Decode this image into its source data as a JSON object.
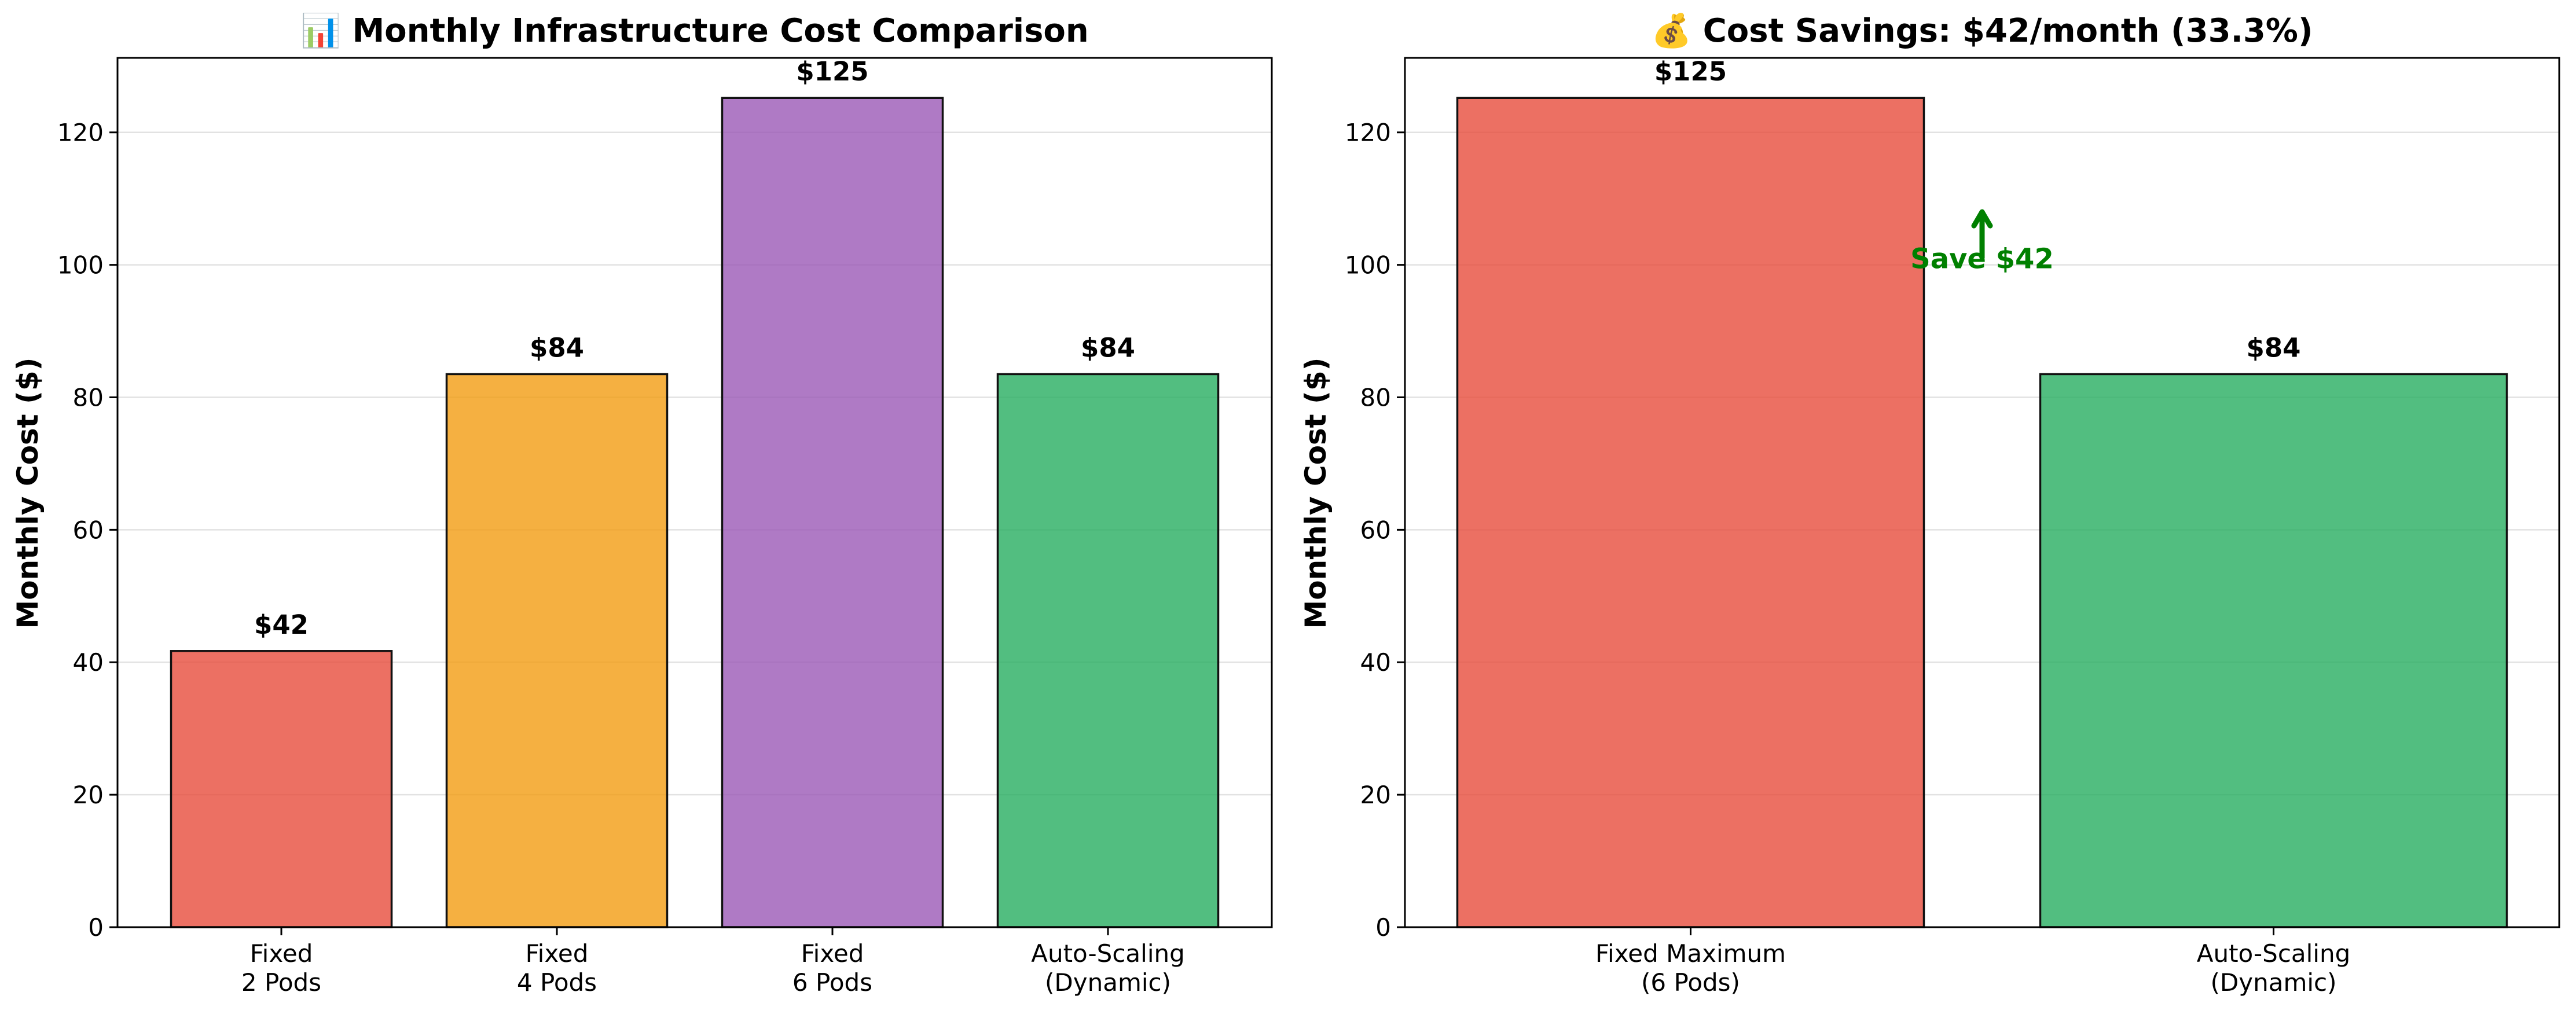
{
  "chart_data": [
    {
      "type": "bar",
      "title": "📊 Monthly Infrastructure Cost Comparison",
      "ylabel": "Monthly Cost ($)",
      "xlabel": "",
      "ylim": [
        0,
        131.25
      ],
      "yticks": [
        0,
        20,
        40,
        60,
        80,
        100,
        120
      ],
      "grid": "y",
      "categories": [
        [
          "Fixed",
          "2 Pods"
        ],
        [
          "Fixed",
          "4 Pods"
        ],
        [
          "Fixed",
          "6 Pods"
        ],
        [
          "Auto-Scaling",
          "(Dynamic)"
        ]
      ],
      "values": [
        41.7,
        83.5,
        125.2,
        83.5
      ],
      "value_labels": [
        "$42",
        "$84",
        "$125",
        "$84"
      ],
      "colors": [
        "#e74c3c",
        "#f39c12",
        "#9b59b6",
        "#27ae60"
      ]
    },
    {
      "type": "bar",
      "title": "💰 Cost Savings: $42/month (33.3%)",
      "ylabel": "Monthly Cost ($)",
      "xlabel": "",
      "ylim": [
        0,
        131.25
      ],
      "yticks": [
        0,
        20,
        40,
        60,
        80,
        100,
        120
      ],
      "grid": "y",
      "categories": [
        [
          "Fixed Maximum",
          "(6 Pods)"
        ],
        [
          "Auto-Scaling",
          "(Dynamic)"
        ]
      ],
      "values": [
        125.2,
        83.5
      ],
      "value_labels": [
        "$125",
        "$84"
      ],
      "colors": [
        "#e74c3c",
        "#27ae60"
      ],
      "annotation": {
        "text": "Save $42",
        "color": "#008000",
        "arrow_from": 101,
        "arrow_to": 108
      }
    }
  ]
}
